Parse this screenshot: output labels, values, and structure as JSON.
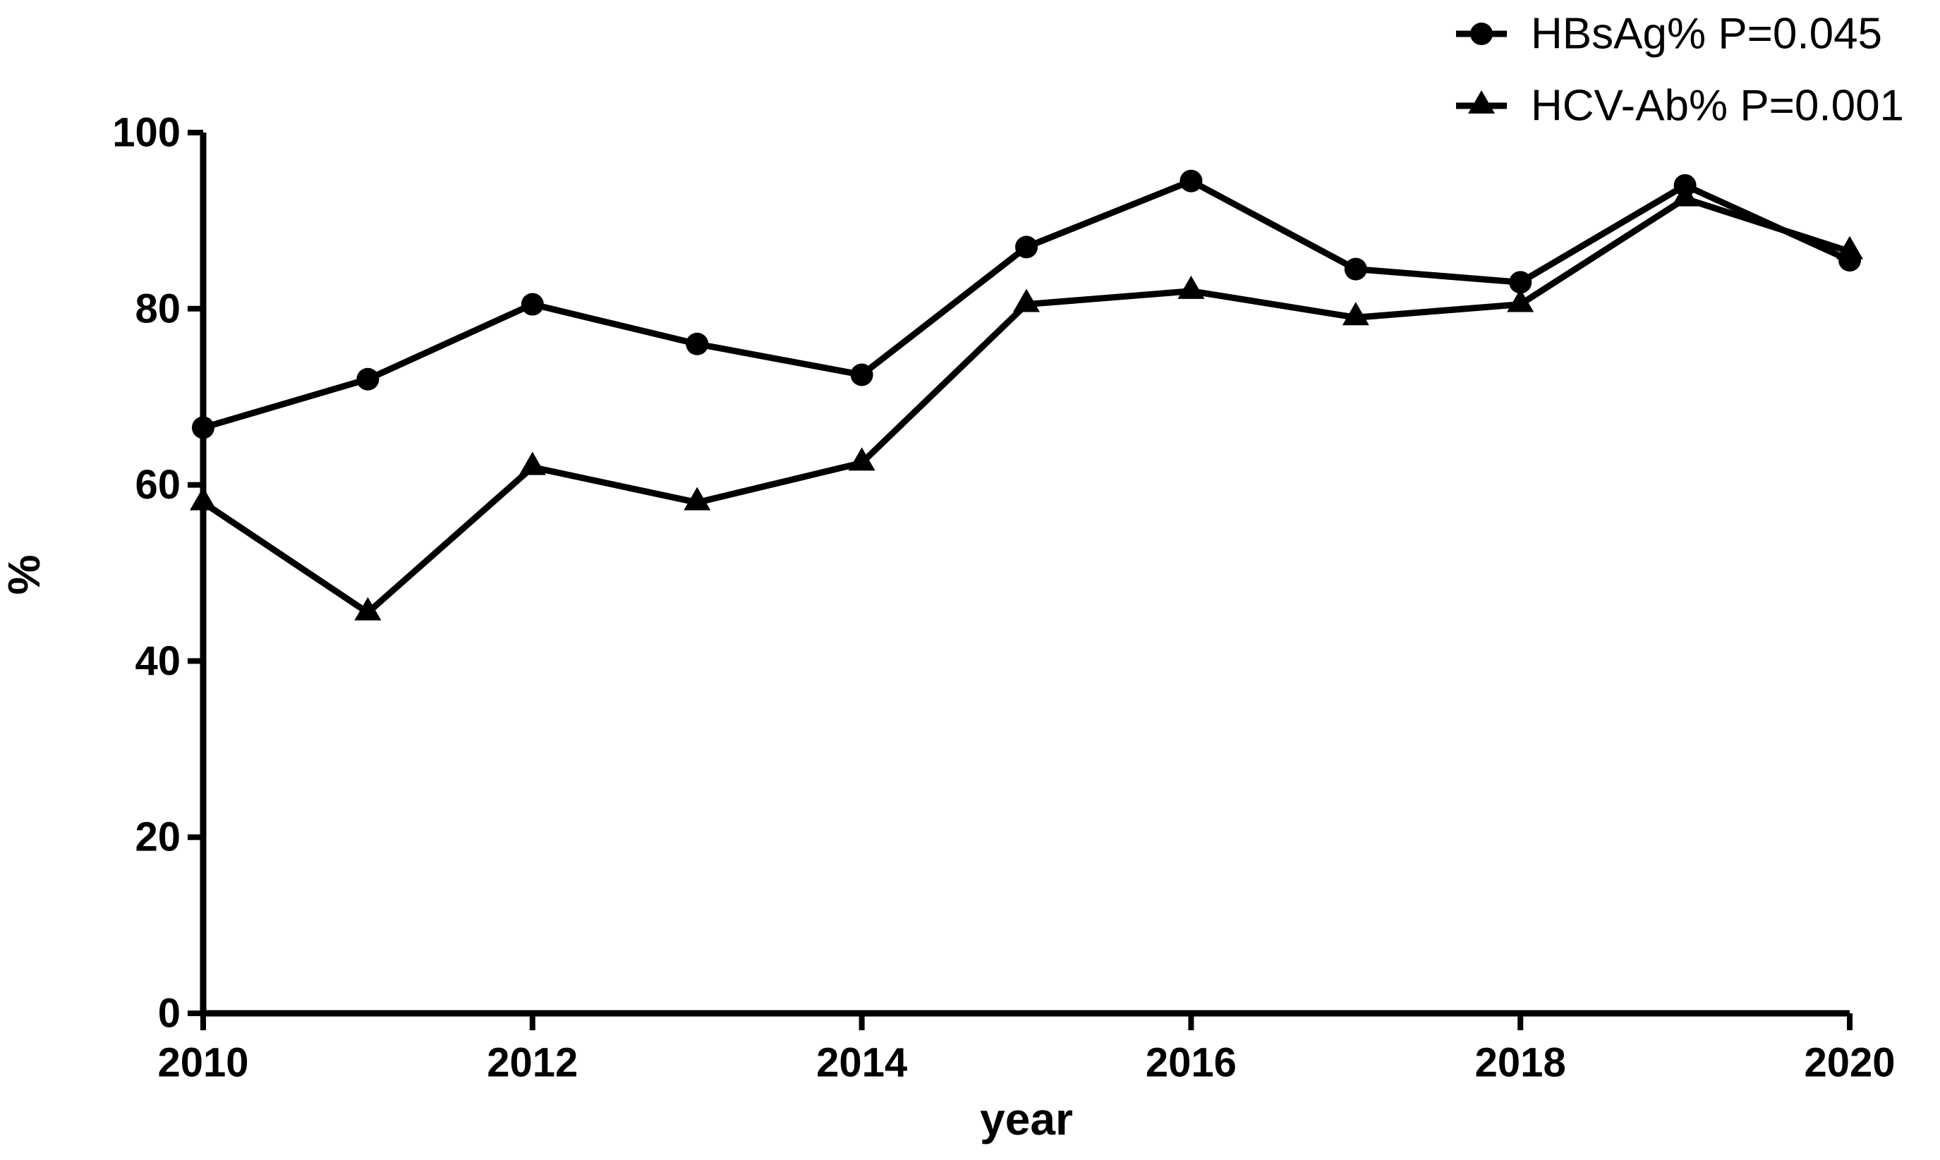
{
  "page": {
    "background": "#ffffff",
    "ink": "#000000"
  },
  "chart_data": {
    "type": "line",
    "title": "",
    "xlabel": "year",
    "ylabel": "%",
    "x": [
      2010,
      2011,
      2012,
      2013,
      2014,
      2015,
      2016,
      2017,
      2018,
      2019,
      2020
    ],
    "xlim": [
      2010,
      2020
    ],
    "ylim": [
      0,
      100
    ],
    "xtick_labels": [
      "2010",
      "2012",
      "2014",
      "2016",
      "2018",
      "2020"
    ],
    "ytick_labels": [
      "0",
      "20",
      "40",
      "60",
      "80",
      "100"
    ],
    "grid": false,
    "legend_position": "top-right",
    "series": [
      {
        "name": "HBsAg% P=0.045",
        "marker": "circle",
        "color": "#000000",
        "values": [
          66.5,
          72,
          80.5,
          76,
          72.5,
          87,
          94.5,
          84.5,
          83,
          94,
          85.5
        ]
      },
      {
        "name": "HCV-Ab% P=0.001",
        "marker": "triangle",
        "color": "#000000",
        "values": [
          58,
          45.5,
          62,
          58,
          62.5,
          80.5,
          82,
          79,
          80.5,
          92.5,
          86.5
        ]
      }
    ]
  }
}
